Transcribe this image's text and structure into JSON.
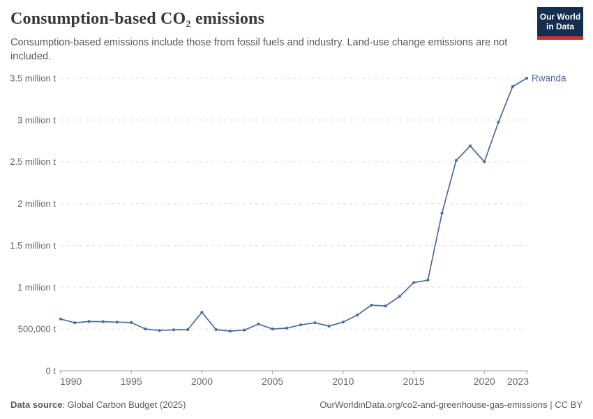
{
  "header": {
    "title": "Consumption-based CO₂ emissions",
    "subtitle": "Consumption-based emissions include those from fossil fuels and industry. Land-use change emissions are not included.",
    "logo": {
      "line1": "Our World",
      "line2": "in Data",
      "bg_color": "#132e4f",
      "accent_color": "#cf3428"
    }
  },
  "chart_data": {
    "type": "line",
    "title": "Consumption-based CO₂ emissions",
    "xlabel": "",
    "ylabel": "",
    "xlim": [
      1990,
      2023
    ],
    "ylim": [
      0,
      3500000
    ],
    "grid": "horizontal-dashed",
    "legend_position": "end-of-line-label",
    "x_ticks": [
      1990,
      1995,
      2000,
      2005,
      2010,
      2015,
      2020,
      2023
    ],
    "y_ticks": [
      {
        "value": 0,
        "label": "0 t"
      },
      {
        "value": 500000,
        "label": "500,000 t"
      },
      {
        "value": 1000000,
        "label": "1 million t"
      },
      {
        "value": 1500000,
        "label": "1.5 million t"
      },
      {
        "value": 2000000,
        "label": "2 million t"
      },
      {
        "value": 2500000,
        "label": "2.5 million t"
      },
      {
        "value": 3000000,
        "label": "3 million t"
      },
      {
        "value": 3500000,
        "label": "3.5 million t"
      }
    ],
    "x": [
      1990,
      1991,
      1992,
      1993,
      1994,
      1995,
      1996,
      1997,
      1998,
      1999,
      2000,
      2001,
      2002,
      2003,
      2004,
      2005,
      2006,
      2007,
      2008,
      2009,
      2010,
      2011,
      2012,
      2013,
      2014,
      2015,
      2016,
      2017,
      2018,
      2019,
      2020,
      2021,
      2022,
      2023
    ],
    "series": [
      {
        "name": "Rwanda",
        "color": "#4c6a9c",
        "values": [
          620000,
          575000,
          590000,
          588000,
          582000,
          577000,
          500000,
          483000,
          490000,
          493000,
          700000,
          493000,
          475000,
          487000,
          560000,
          500000,
          510000,
          550000,
          575000,
          535000,
          583000,
          667000,
          785000,
          775000,
          890000,
          1055000,
          1085000,
          1885000,
          2515000,
          2690000,
          2500000,
          2975000,
          3400000,
          3500000
        ]
      }
    ]
  },
  "footer": {
    "datasource_label": "Data source",
    "datasource_rest": ": Global Carbon Budget (2025)",
    "link": "OurWorldinData.org/co2-and-greenhouse-gas-emissions | CC BY"
  },
  "style": {
    "grid_color": "#dedede",
    "axis_color": "#a1a1a1",
    "tick_label_color": "#666666"
  }
}
